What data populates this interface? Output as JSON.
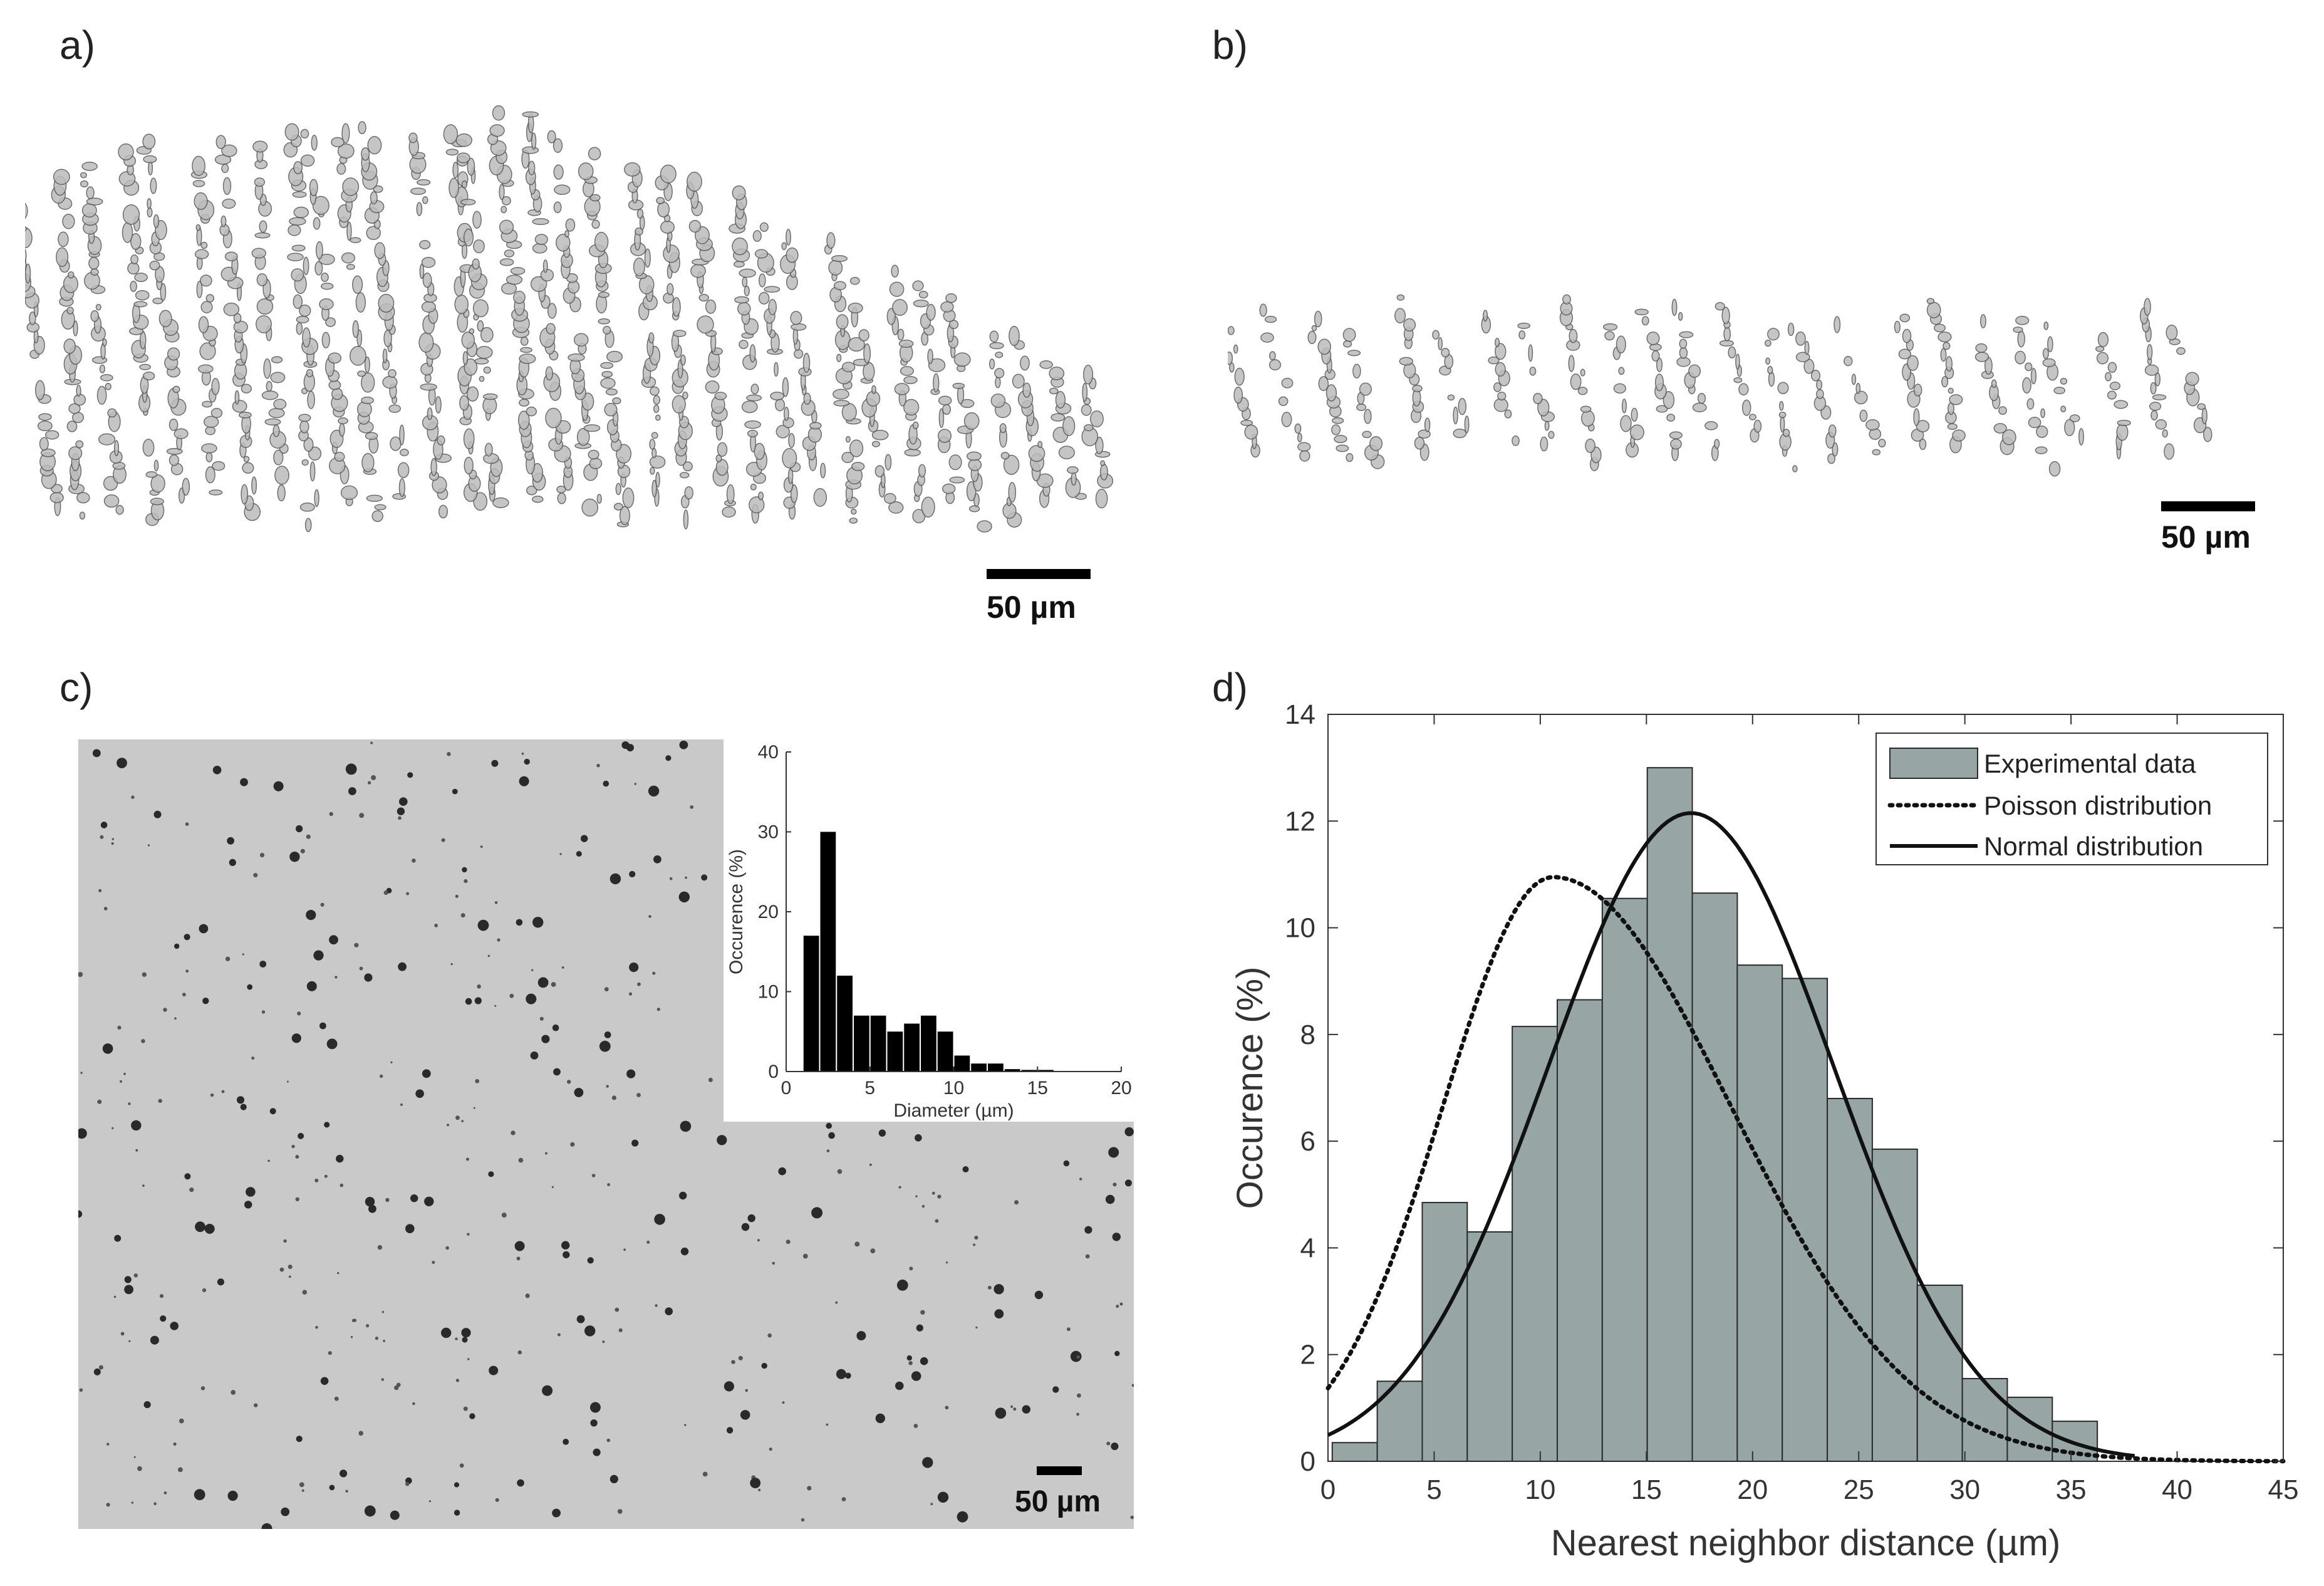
{
  "panels": {
    "a": {
      "label": "a)",
      "scale_label": "50 µm"
    },
    "b": {
      "label": "b)",
      "scale_label": "50 µm"
    },
    "c": {
      "label": "c)",
      "scale_label": "50 µm"
    },
    "d": {
      "label": "d)"
    }
  },
  "colors": {
    "bar_fill": "#97a5a5",
    "bar_edge": "#2a2a2a",
    "inset_bar": "#000000",
    "micrograph_bg": "#c8c8c8"
  },
  "chart_data": [
    {
      "id": "inset",
      "type": "bar",
      "xlabel": "Diameter (µm)",
      "ylabel": "Occurence (%)",
      "xlim": [
        0,
        20
      ],
      "ylim": [
        0,
        40
      ],
      "xticks": [
        0,
        5,
        10,
        15,
        20
      ],
      "yticks": [
        0,
        10,
        20,
        30,
        40
      ],
      "bin_width": 1,
      "bin_starts": [
        1,
        2,
        3,
        4,
        5,
        6,
        7,
        8,
        9,
        10,
        11,
        12,
        13,
        14,
        15
      ],
      "values": [
        17,
        30,
        12,
        7,
        7,
        5,
        6,
        7,
        5,
        2,
        1,
        1,
        0.3,
        0.2,
        0.2
      ]
    },
    {
      "id": "main",
      "type": "bar",
      "title": "",
      "xlabel": "Nearest neighbor distance (µm)",
      "ylabel": "Occurence (%)",
      "xlim": [
        0,
        45
      ],
      "ylim": [
        0,
        14
      ],
      "xticks": [
        0,
        5,
        10,
        15,
        20,
        25,
        30,
        35,
        40,
        45
      ],
      "yticks": [
        0,
        2,
        4,
        6,
        8,
        10,
        12,
        14
      ],
      "bin_width": 2.12,
      "bin_start": 0.2,
      "values": [
        0.35,
        1.5,
        4.85,
        4.3,
        8.15,
        8.65,
        10.55,
        13.0,
        10.65,
        9.3,
        9.05,
        6.8,
        5.85,
        3.3,
        1.55,
        1.2,
        0.75,
        0
      ],
      "legend": {
        "position": "top-right",
        "entries": [
          "Experimental data",
          "Poisson distribution",
          "Normal distribution"
        ]
      },
      "normal_fit": {
        "mean": 17.1,
        "sd": 6.75,
        "peak": 12.15
      },
      "poisson_fit": {
        "mode": 10.6,
        "peak": 10.95
      }
    }
  ]
}
